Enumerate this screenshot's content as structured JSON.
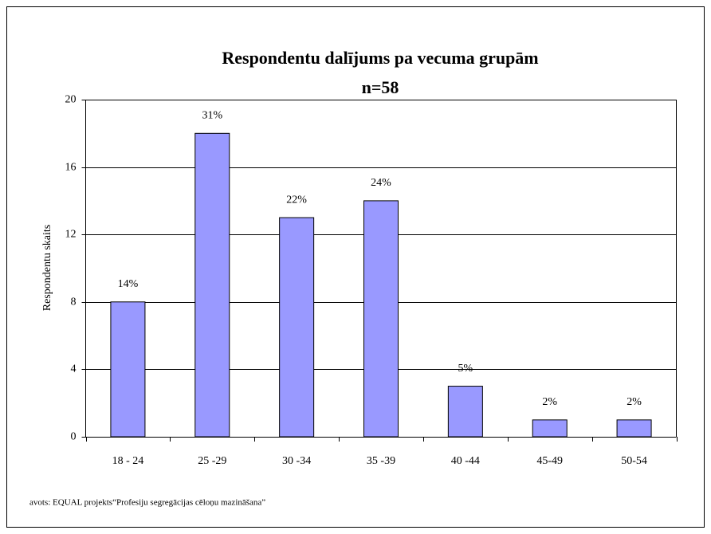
{
  "chart_data": {
    "type": "bar",
    "title": "Respondentu dalījums pa vecuma grupām",
    "subtitle": "n=58",
    "y_label": "Respondentu skaits",
    "source": "avots: EQUAL projekts“Profesiju segregācijas cēloņu mazināšana”",
    "categories": [
      "18 - 24",
      "25 -29",
      "30 -34",
      "35 -39",
      "40 -44",
      "45-49",
      "50-54"
    ],
    "values": [
      8,
      18,
      13,
      14,
      3,
      1,
      1
    ],
    "value_labels": [
      "14%",
      "31%",
      "22%",
      "24%",
      "5%",
      "2%",
      "2%"
    ],
    "color": "#9999ff",
    "ylim": [
      0,
      20
    ],
    "yticks": [
      0,
      4,
      8,
      12,
      16,
      20
    ],
    "grid": true
  }
}
